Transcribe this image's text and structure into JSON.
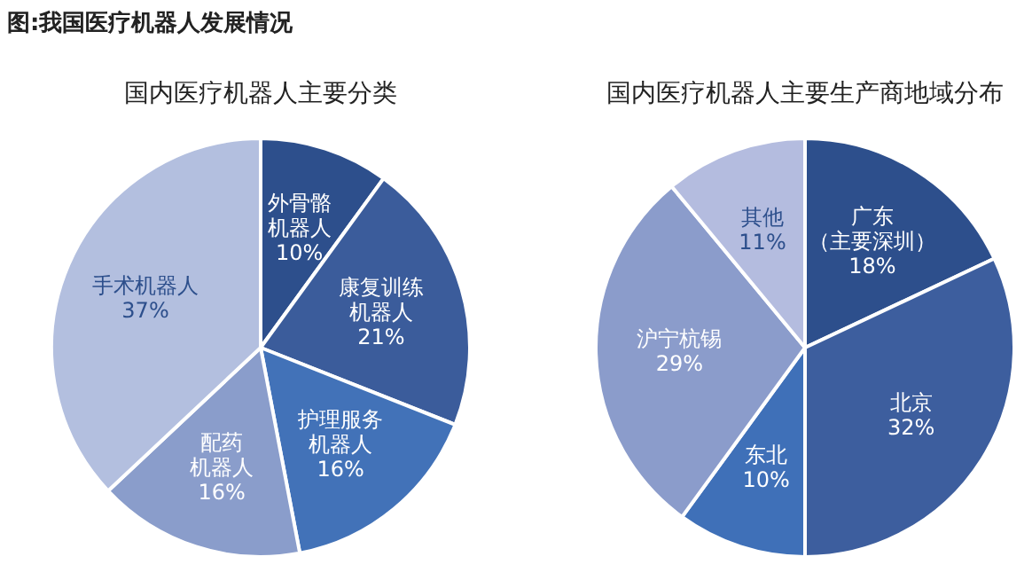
{
  "chart_data": [
    {
      "type": "pie",
      "title": "国内医疗机器人主要分类",
      "annotations": [
        "图:我国医疗机器人发展情况"
      ],
      "categories": [
        "外骨骼机器人",
        "康复训练机器人",
        "护理服务机器人",
        "配药机器人",
        "手术机器人"
      ],
      "values": [
        10,
        21,
        16,
        16,
        37
      ],
      "value_labels": [
        "10%",
        "21%",
        "16%",
        "16%",
        "37%"
      ],
      "colors": [
        "#2d4f8c",
        "#3b5c9b",
        "#4272b8",
        "#8a9dcb",
        "#b3bfdf"
      ],
      "legend": false
    },
    {
      "type": "pie",
      "title": "国内医疗机器人主要生产商地域分布",
      "categories": [
        "广东（主要深圳）",
        "北京",
        "东北",
        "沪宁杭锡",
        "其他"
      ],
      "values": [
        18,
        32,
        10,
        29,
        11
      ],
      "value_labels": [
        "18%",
        "32%",
        "10%",
        "29%",
        "11%"
      ],
      "colors": [
        "#2d4f8c",
        "#3d5e9e",
        "#3f70b8",
        "#8b9ccb",
        "#b4bcdf"
      ],
      "legend": false
    }
  ]
}
